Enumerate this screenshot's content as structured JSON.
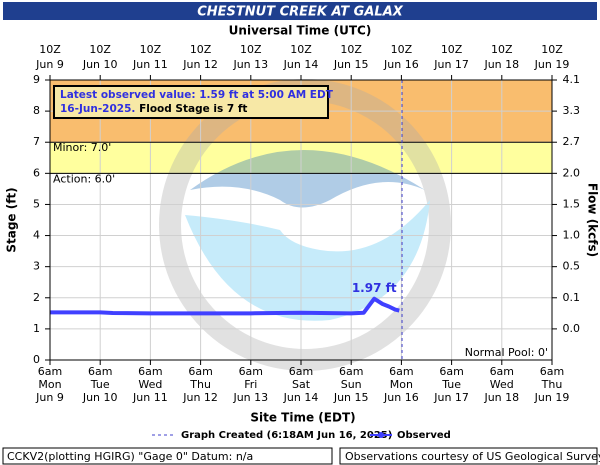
{
  "chart_data": {
    "type": "line",
    "title": "CHESTNUT CREEK AT GALAX",
    "top_axis_label": "Universal Time (UTC)",
    "x_label": "Site Time (EDT)",
    "y_label": "Stage (ft)",
    "y2_label": "Flow (kcfs)",
    "xlim": [
      "Jun 9 06:00",
      "Jun 19 06:00"
    ],
    "ylim": [
      0,
      9
    ],
    "yticks": [
      0,
      1,
      2,
      3,
      4,
      5,
      6,
      7,
      8,
      9
    ],
    "y2ticks": [
      {
        "value": 0,
        "label": "0.0"
      },
      0.1,
      0.5,
      {
        "value": 1,
        "label": "1.0"
      },
      1.5,
      {
        "value": 2,
        "label": "2.0"
      },
      2.7,
      3.3,
      4.1
    ],
    "grid": true,
    "xticks": [
      {
        "value": "Jun 9 06:00",
        "label": [
          "6am",
          "Mon",
          "Jun 9"
        ]
      },
      {
        "value": "Jun 10 06:00",
        "label": [
          "6am",
          "Tue",
          "Jun 10"
        ]
      },
      {
        "value": "Jun 11 06:00",
        "label": [
          "6am",
          "Wed",
          "Jun 11"
        ]
      },
      {
        "value": "Jun 12 06:00",
        "label": [
          "6am",
          "Thu",
          "Jun 12"
        ]
      },
      {
        "value": "Jun 13 06:00",
        "label": [
          "6am",
          "Fri",
          "Jun 13"
        ]
      },
      {
        "value": "Jun 14 06:00",
        "label": [
          "6am",
          "Sat",
          "Jun 14"
        ]
      },
      {
        "value": "Jun 15 06:00",
        "label": [
          "6am",
          "Sun",
          "Jun 15"
        ]
      },
      {
        "value": "Jun 16 06:00",
        "label": [
          "6am",
          "Mon",
          "Jun 16"
        ]
      },
      {
        "value": "Jun 17 06:00",
        "label": [
          "6am",
          "Tue",
          "Jun 17"
        ]
      },
      {
        "value": "Jun 18 06:00",
        "label": [
          "6am",
          "Wed",
          "Jun 18"
        ]
      },
      {
        "value": "Jun 19 06:00",
        "label": [
          "6am",
          "Thu",
          "Jun 19"
        ]
      }
    ],
    "x2ticks": [
      {
        "value": "Jun 9 06:00",
        "label": [
          "10Z",
          "Jun 9"
        ]
      },
      {
        "value": "Jun 10 06:00",
        "label": [
          "10Z",
          "Jun 10"
        ]
      },
      {
        "value": "Jun 11 06:00",
        "label": [
          "10Z",
          "Jun 11"
        ]
      },
      {
        "value": "Jun 12 06:00",
        "label": [
          "10Z",
          "Jun 12"
        ]
      },
      {
        "value": "Jun 13 06:00",
        "label": [
          "10Z",
          "Jun 13"
        ]
      },
      {
        "value": "Jun 14 06:00",
        "label": [
          "10Z",
          "Jun 14"
        ]
      },
      {
        "value": "Jun 15 06:00",
        "label": [
          "10Z",
          "Jun 15"
        ]
      },
      {
        "value": "Jun 16 06:00",
        "label": [
          "10Z",
          "Jun 16"
        ]
      },
      {
        "value": "Jun 17 06:00",
        "label": [
          "10Z",
          "Jun 17"
        ]
      },
      {
        "value": "Jun 18 06:00",
        "label": [
          "10Z",
          "Jun 18"
        ]
      },
      {
        "value": "Jun 19 06:00",
        "label": [
          "10Z",
          "Jun 19"
        ]
      }
    ],
    "thresholds": [
      {
        "value": 7,
        "label": "Minor: 7.0'",
        "color": "#f9bd6e"
      },
      {
        "value": 6,
        "label": "Action: 6.0'",
        "color": "#ffff9e"
      }
    ],
    "normal_pool": "Normal Pool: 0'",
    "series": [
      {
        "name": "Observed",
        "color": "#4040ff",
        "x": [
          "Jun 9 06:00",
          "Jun 10 06:00",
          "Jun 10 12:00",
          "Jun 11 06:00",
          "Jun 12 06:00",
          "Jun 13 06:00",
          "Jun 14 06:00",
          "Jun 15 06:00",
          "Jun 15 12:00",
          "Jun 15 17:00",
          "Jun 15 21:00",
          "Jun 16 00:00",
          "Jun 16 03:00",
          "Jun 16 05:00"
        ],
        "values": [
          1.53,
          1.53,
          1.51,
          1.5,
          1.5,
          1.5,
          1.52,
          1.5,
          1.52,
          1.97,
          1.8,
          1.72,
          1.62,
          1.59
        ]
      }
    ],
    "peak": {
      "x": "Jun 15 17:00",
      "value": 1.97,
      "label": "1.97 ft"
    },
    "info_box": {
      "lines": [
        "Latest observed value: 1.59 ft at 5:00 AM EDT",
        "16-Jun-2025."
      ],
      "flood_stage": "Flood Stage is 7 ft"
    },
    "graph_created": {
      "x": "Jun 16 06:18",
      "label": "Graph Created (6:18AM Jun 16, 2025)"
    },
    "footer_left": "CCKV2(plotting HGIRG) \"Gage 0\" Datum: n/a",
    "footer_right": "Observations courtesy of US Geological Survey"
  }
}
